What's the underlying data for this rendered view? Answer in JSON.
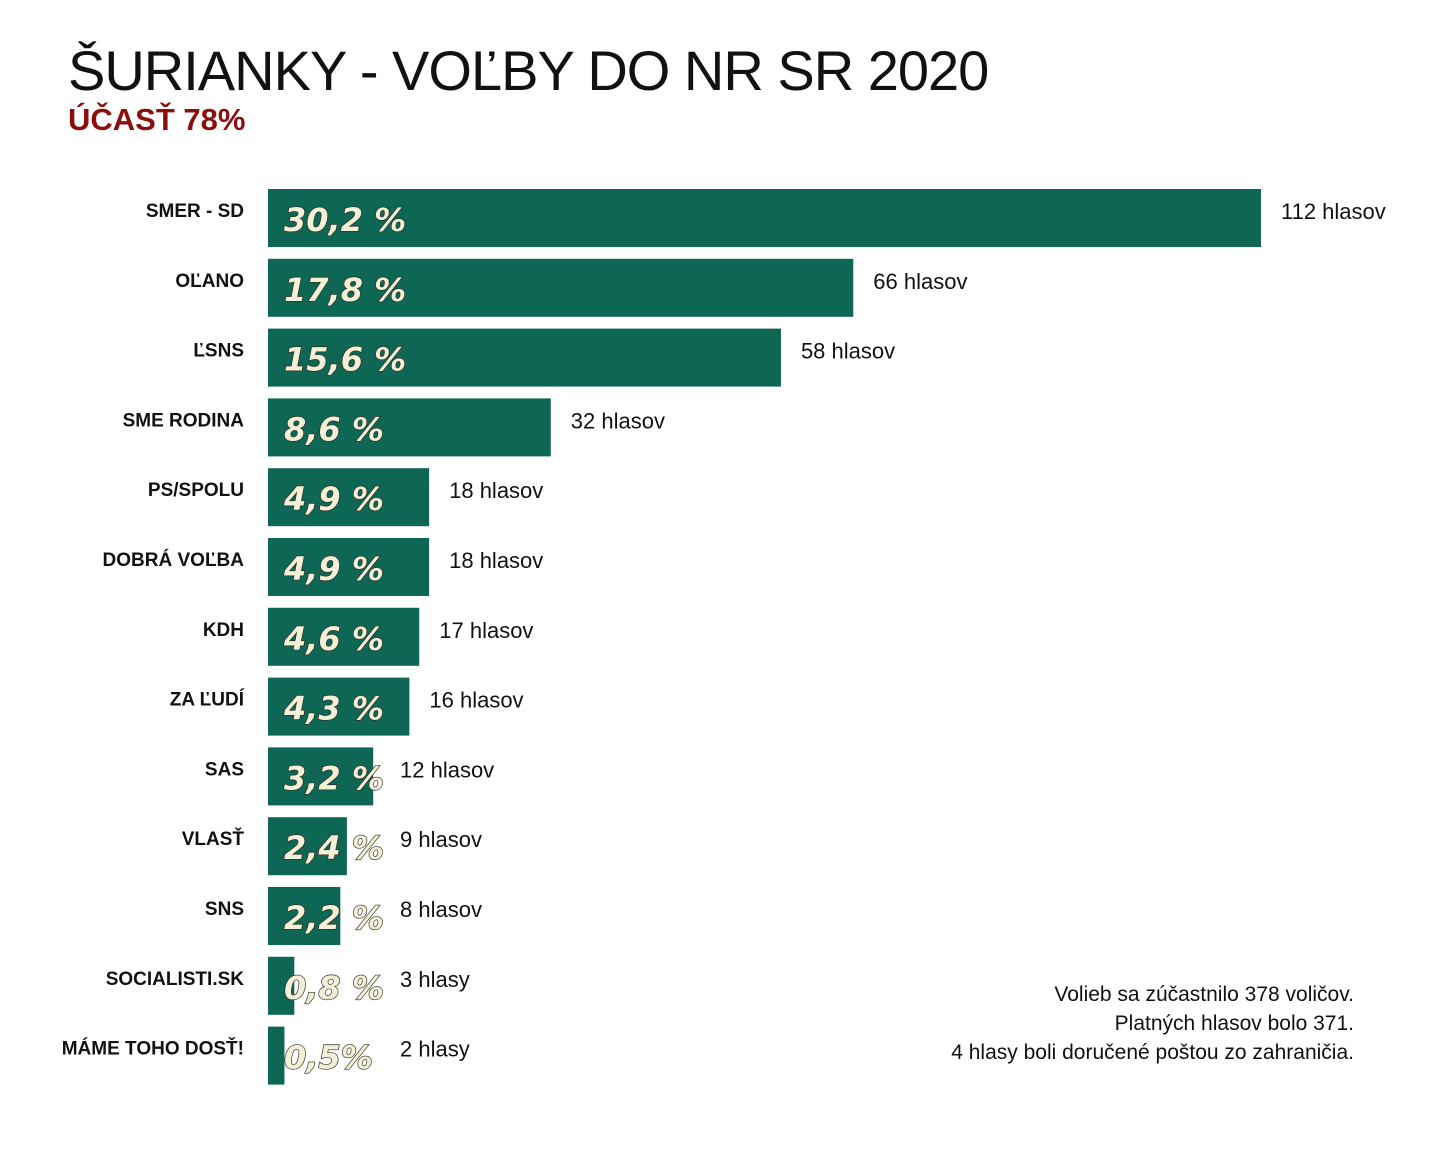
{
  "title": "ŠURIANKY - VOĽBY DO NR SR 2020",
  "subtitle": "ÚČASŤ 78%",
  "colors": {
    "bar": "#0e6655",
    "subtitle": "#8b0f0f",
    "pct_text": "#f4f0d8"
  },
  "chart_data": {
    "type": "bar",
    "orientation": "horizontal",
    "title": "ŠURIANKY - VOĽBY DO NR SR 2020",
    "subtitle": "ÚČASŤ 78%",
    "categories": [
      "SMER - SD",
      "OĽANO",
      "ĽSNS",
      "SME RODINA",
      "PS/SPOLU",
      "DOBRÁ VOĽBA",
      "KDH",
      "ZA ĽUDÍ",
      "SAS",
      "VLASŤ",
      "SNS",
      "SOCIALISTI.SK",
      "MÁME TOHO DOSŤ!"
    ],
    "values": [
      30.2,
      17.8,
      15.6,
      8.6,
      4.9,
      4.9,
      4.6,
      4.3,
      3.2,
      2.4,
      2.2,
      0.8,
      0.5
    ],
    "percent_labels": [
      "30,2 %",
      "17,8 %",
      "15,6 %",
      "8,6 %",
      "4,9 %",
      "4,9 %",
      "4,6 %",
      "4,3 %",
      "3,2 %",
      "2,4 %",
      "2,2 %",
      "0,8 %",
      "0,5%"
    ],
    "votes": [
      112,
      66,
      58,
      32,
      18,
      18,
      17,
      16,
      12,
      9,
      8,
      3,
      2
    ],
    "vote_labels": [
      "112 hlasov",
      "66 hlasov",
      "58 hlasov",
      "32 hlasov",
      "18 hlasov",
      "18 hlasov",
      "17 hlasov",
      "16 hlasov",
      "12 hlasov",
      "9 hlasov",
      "8 hlasov",
      "3 hlasy",
      "2 hlasy"
    ],
    "xlim": [
      0,
      30.2
    ],
    "grid": false,
    "legend": "none"
  },
  "notes": [
    "Volieb sa zúčastnilo 378 voličov.",
    "Platných hlasov bolo 371.",
    "4 hlasy boli doručené poštou zo zahraničia."
  ]
}
